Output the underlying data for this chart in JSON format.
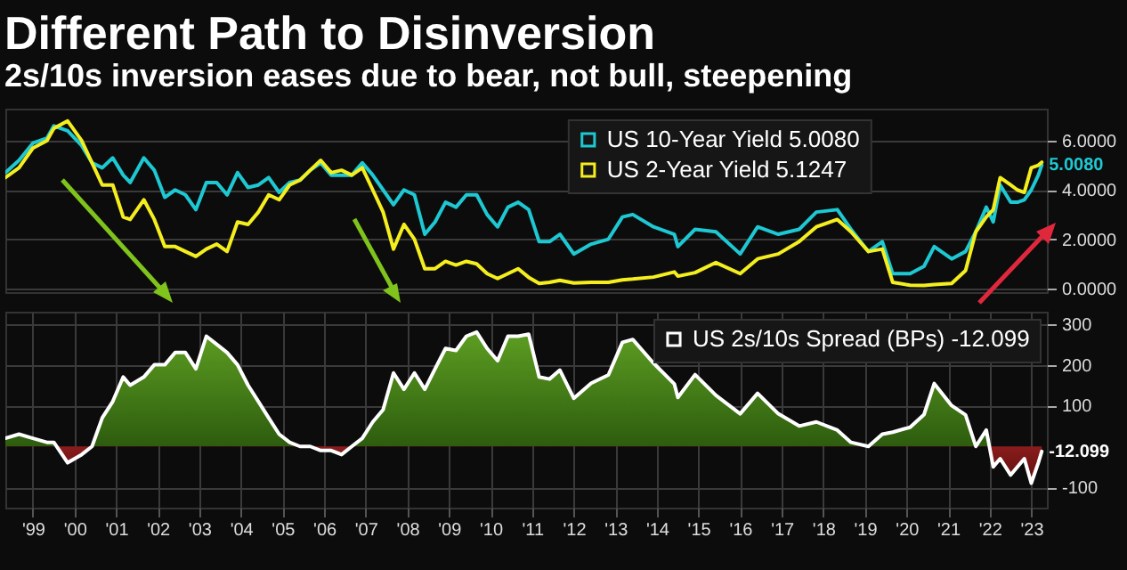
{
  "chart_data": [
    {
      "type": "line",
      "title": "Different Path to Disinversion",
      "subtitle": "2s/10s inversion eases due to bear, not bull, steepening",
      "x": [
        "1998-11",
        "1999-03",
        "1999-07",
        "1999-11",
        "2000-01",
        "2000-05",
        "2000-09",
        "2000-12",
        "2001-03",
        "2001-06",
        "2001-09",
        "2001-11",
        "2002-03",
        "2002-06",
        "2002-09",
        "2002-12",
        "2003-03",
        "2003-06",
        "2003-09",
        "2003-12",
        "2004-03",
        "2004-06",
        "2004-09",
        "2004-12",
        "2005-03",
        "2005-06",
        "2005-09",
        "2005-12",
        "2006-03",
        "2006-06",
        "2006-09",
        "2006-12",
        "2007-03",
        "2007-06",
        "2007-09",
        "2007-12",
        "2008-03",
        "2008-06",
        "2008-09",
        "2008-12",
        "2009-03",
        "2009-06",
        "2009-09",
        "2009-12",
        "2010-03",
        "2010-06",
        "2010-09",
        "2010-12",
        "2011-03",
        "2011-06",
        "2011-09",
        "2011-12",
        "2012-03",
        "2012-07",
        "2012-12",
        "2013-05",
        "2013-09",
        "2013-12",
        "2014-06",
        "2014-12",
        "2015-01",
        "2015-06",
        "2015-12",
        "2016-07",
        "2016-12",
        "2017-06",
        "2017-12",
        "2018-05",
        "2018-11",
        "2019-03",
        "2019-08",
        "2019-12",
        "2020-03",
        "2020-08",
        "2020-12",
        "2021-03",
        "2021-08",
        "2021-12",
        "2022-03",
        "2022-06",
        "2022-08",
        "2022-10",
        "2023-01",
        "2023-03",
        "2023-05",
        "2023-07",
        "2023-09",
        "2023-10"
      ],
      "series": [
        {
          "name": "US 10-Year Yield 5.0080",
          "color": "#1ec8d2",
          "values": [
            4.7,
            5.2,
            5.9,
            6.1,
            6.6,
            6.4,
            5.8,
            5.1,
            4.9,
            5.3,
            4.6,
            4.3,
            5.3,
            4.8,
            3.7,
            4.0,
            3.8,
            3.2,
            4.3,
            4.3,
            3.8,
            4.7,
            4.1,
            4.2,
            4.5,
            3.9,
            4.3,
            4.4,
            4.8,
            5.1,
            4.6,
            4.6,
            4.6,
            5.1,
            4.6,
            4.0,
            3.4,
            4.0,
            3.8,
            2.2,
            2.7,
            3.5,
            3.3,
            3.8,
            3.8,
            3.0,
            2.5,
            3.3,
            3.5,
            3.2,
            1.9,
            1.9,
            2.2,
            1.4,
            1.8,
            2.0,
            2.9,
            3.0,
            2.5,
            2.2,
            1.7,
            2.4,
            2.3,
            1.4,
            2.5,
            2.2,
            2.4,
            3.1,
            3.2,
            2.4,
            1.5,
            1.9,
            0.6,
            0.6,
            0.9,
            1.7,
            1.2,
            1.5,
            2.3,
            3.3,
            2.7,
            4.2,
            3.5,
            3.5,
            3.6,
            4.0,
            4.6,
            5.008
          ],
          "value_labels": [
            null,
            null,
            null,
            null,
            null,
            null,
            null,
            null,
            null,
            null,
            null,
            null,
            null,
            null,
            null,
            null,
            null,
            null,
            null,
            null,
            null,
            null,
            null,
            null,
            null,
            null,
            null,
            null,
            null,
            null,
            null,
            null,
            null,
            null,
            null,
            null,
            null,
            null,
            null,
            null,
            null,
            null,
            null,
            null,
            null,
            null,
            null,
            null,
            null,
            null,
            null,
            null,
            null,
            null,
            null,
            null,
            null,
            null,
            null,
            null,
            null,
            null,
            null,
            null,
            null,
            null,
            null,
            null,
            null,
            null,
            null,
            null,
            null,
            null,
            null,
            null,
            null,
            null,
            null,
            null,
            null,
            null,
            null,
            null,
            null,
            null,
            null,
            "5.0080"
          ]
        },
        {
          "name": "US 2-Year Yield  5.1247",
          "color": "#f5ee1e",
          "values": [
            4.5,
            4.9,
            5.7,
            6.0,
            6.5,
            6.8,
            6.0,
            5.1,
            4.2,
            4.2,
            2.9,
            2.8,
            3.6,
            2.8,
            1.7,
            1.7,
            1.5,
            1.3,
            1.6,
            1.8,
            1.5,
            2.7,
            2.6,
            3.1,
            3.8,
            3.6,
            4.2,
            4.4,
            4.8,
            5.2,
            4.7,
            4.8,
            4.6,
            4.9,
            4.0,
            3.1,
            1.6,
            2.6,
            2.0,
            0.8,
            0.8,
            1.1,
            0.95,
            1.1,
            1.0,
            0.6,
            0.4,
            0.6,
            0.8,
            0.45,
            0.2,
            0.25,
            0.33,
            0.22,
            0.25,
            0.25,
            0.35,
            0.38,
            0.46,
            0.67,
            0.5,
            0.64,
            1.05,
            0.6,
            1.2,
            1.4,
            1.9,
            2.5,
            2.8,
            2.3,
            1.5,
            1.6,
            0.25,
            0.13,
            0.12,
            0.16,
            0.2,
            0.73,
            2.3,
            2.9,
            3.2,
            4.5,
            4.2,
            4.0,
            3.9,
            4.9,
            5.0,
            5.1247
          ]
        }
      ],
      "xlim": [
        "1998-11",
        "2023-11-15"
      ],
      "ylim": [
        -0.15,
        7.3
      ],
      "yticks": [
        {
          "value": 0,
          "label": "0.0000"
        },
        {
          "value": 2,
          "label": "2.0000"
        },
        {
          "value": 4,
          "label": "4.0000"
        },
        {
          "value": 6,
          "label": "6.0000"
        }
      ],
      "tick_labels": "y",
      "grid": true,
      "legend": "top",
      "line_style": "solid",
      "marker": "none"
    },
    {
      "type": "area",
      "x": [
        "1998-11",
        "1999-03",
        "1999-07",
        "1999-11",
        "2000-01",
        "2000-05",
        "2000-09",
        "2000-12",
        "2001-03",
        "2001-06",
        "2001-09",
        "2001-11",
        "2002-03",
        "2002-06",
        "2002-09",
        "2002-12",
        "2003-03",
        "2003-06",
        "2003-09",
        "2003-12",
        "2004-03",
        "2004-06",
        "2004-09",
        "2004-12",
        "2005-03",
        "2005-06",
        "2005-09",
        "2005-12",
        "2006-03",
        "2006-06",
        "2006-09",
        "2006-12",
        "2007-03",
        "2007-06",
        "2007-09",
        "2007-12",
        "2008-03",
        "2008-06",
        "2008-09",
        "2008-12",
        "2009-03",
        "2009-06",
        "2009-09",
        "2009-12",
        "2010-03",
        "2010-06",
        "2010-09",
        "2010-12",
        "2011-03",
        "2011-06",
        "2011-09",
        "2011-12",
        "2012-03",
        "2012-07",
        "2012-12",
        "2013-05",
        "2013-09",
        "2013-12",
        "2014-06",
        "2014-12",
        "2015-01",
        "2015-06",
        "2015-12",
        "2016-07",
        "2016-12",
        "2017-06",
        "2017-12",
        "2018-05",
        "2018-11",
        "2019-03",
        "2019-08",
        "2019-12",
        "2020-03",
        "2020-08",
        "2020-12",
        "2021-03",
        "2021-08",
        "2021-12",
        "2022-03",
        "2022-06",
        "2022-08",
        "2022-10",
        "2023-01",
        "2023-03",
        "2023-05",
        "2023-07",
        "2023-09",
        "2023-10"
      ],
      "series": [
        {
          "name": "US 2s/10s Spread (BPs) -12.099",
          "color": "#ffffff",
          "values": [
            20,
            30,
            20,
            10,
            10,
            -40,
            -20,
            0,
            70,
            110,
            170,
            150,
            170,
            200,
            200,
            230,
            230,
            190,
            270,
            250,
            230,
            200,
            150,
            110,
            70,
            30,
            10,
            0,
            0,
            -10,
            -10,
            -20,
            0,
            20,
            60,
            90,
            180,
            140,
            180,
            140,
            190,
            240,
            235,
            270,
            280,
            240,
            210,
            270,
            270,
            275,
            170,
            165,
            187,
            118,
            155,
            175,
            255,
            262,
            204,
            153,
            120,
            176,
            125,
            80,
            130,
            80,
            50,
            60,
            40,
            10,
            0,
            30,
            35,
            47,
            78,
            154,
            100,
            77,
            0,
            40,
            -50,
            -30,
            -70,
            -50,
            -30,
            -90,
            -40,
            -12.099
          ],
          "value_labels": [
            null,
            null,
            null,
            null,
            null,
            null,
            null,
            null,
            null,
            null,
            null,
            null,
            null,
            null,
            null,
            null,
            null,
            null,
            null,
            null,
            null,
            null,
            null,
            null,
            null,
            null,
            null,
            null,
            null,
            null,
            null,
            null,
            null,
            null,
            null,
            null,
            null,
            null,
            null,
            null,
            null,
            null,
            null,
            null,
            null,
            null,
            null,
            null,
            null,
            null,
            null,
            null,
            null,
            null,
            null,
            null,
            null,
            null,
            null,
            null,
            null,
            null,
            null,
            null,
            null,
            null,
            null,
            null,
            null,
            null,
            null,
            null,
            null,
            null,
            null,
            null,
            null,
            null,
            null,
            null,
            null,
            null,
            null,
            null,
            null,
            null,
            null,
            "-12.099"
          ]
        }
      ],
      "xlim": [
        "1998-11",
        "2023-11-15"
      ],
      "ylim": [
        -150,
        330
      ],
      "xticks": [
        {
          "value": "1999-07",
          "label": "'99"
        },
        {
          "value": "2000-07",
          "label": "'00"
        },
        {
          "value": "2001-07",
          "label": "'01"
        },
        {
          "value": "2002-07",
          "label": "'02"
        },
        {
          "value": "2003-07",
          "label": "'03"
        },
        {
          "value": "2004-07",
          "label": "'04"
        },
        {
          "value": "2005-07",
          "label": "'05"
        },
        {
          "value": "2006-07",
          "label": "'06"
        },
        {
          "value": "2007-07",
          "label": "'07"
        },
        {
          "value": "2008-07",
          "label": "'08"
        },
        {
          "value": "2009-07",
          "label": "'09"
        },
        {
          "value": "2010-07",
          "label": "'10"
        },
        {
          "value": "2011-07",
          "label": "'11"
        },
        {
          "value": "2012-07",
          "label": "'12"
        },
        {
          "value": "2013-07",
          "label": "'13"
        },
        {
          "value": "2014-07",
          "label": "'14"
        },
        {
          "value": "2015-07",
          "label": "'15"
        },
        {
          "value": "2016-07",
          "label": "'16"
        },
        {
          "value": "2017-07",
          "label": "'17"
        },
        {
          "value": "2018-07",
          "label": "'18"
        },
        {
          "value": "2019-07",
          "label": "'19"
        },
        {
          "value": "2020-07",
          "label": "'20"
        },
        {
          "value": "2021-07",
          "label": "'21"
        },
        {
          "value": "2022-07",
          "label": "'22"
        },
        {
          "value": "2023-07",
          "label": "'23"
        }
      ],
      "yticks": [
        -100,
        100,
        200,
        300
      ],
      "grid": true,
      "legend": "top right",
      "line_style": "solid",
      "marker": "none"
    }
  ]
}
